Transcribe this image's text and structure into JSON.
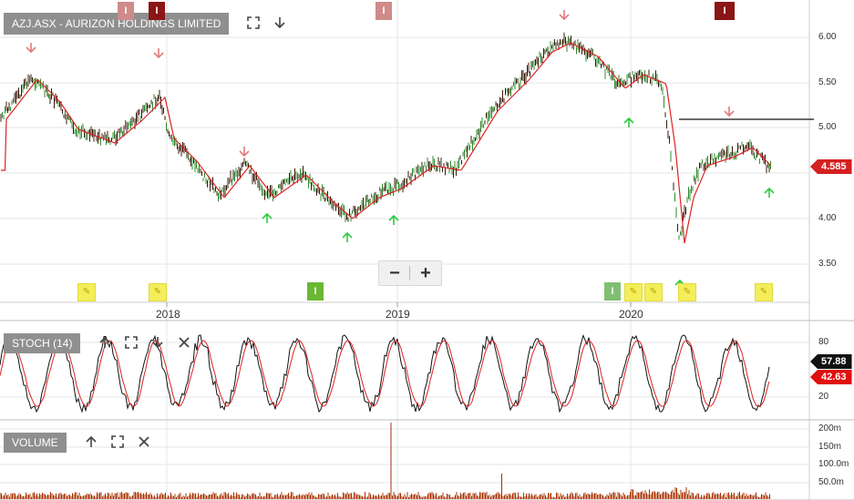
{
  "main_panel": {
    "title": "AZJ.ASX - AURIZON HOLDINGS LIMITED",
    "y_ticks": [
      "6.00",
      "5.50",
      "5.00",
      "4.50",
      "4.00",
      "3.50"
    ],
    "last_price": "4.585",
    "last_price_color": "#d42020"
  },
  "x_axis": {
    "years": [
      "2018",
      "2019",
      "2020"
    ]
  },
  "stoch_panel": {
    "title": "STOCH (14)",
    "y_ticks": [
      "80",
      "20"
    ],
    "k_value": "57.88",
    "d_value": "42.63"
  },
  "volume_panel": {
    "title": "VOLUME",
    "y_ticks": [
      "200m",
      "150m",
      "100.0m",
      "50.0m"
    ]
  },
  "badges": {
    "info_letter": "I"
  },
  "zoom": {
    "minus": "−",
    "plus": "+"
  },
  "icons": {
    "fullscreen": "fullscreen-icon",
    "down": "arrow-down-icon",
    "up": "arrow-up-icon",
    "close": "close-icon",
    "pencil": "pencil-icon"
  },
  "colors": {
    "price_line": "#dd2222",
    "up_candle": "#2e8b2e",
    "down_candle": "#3a1a0a",
    "volume": "#a83000",
    "signal_up": "#2ecc40",
    "signal_down": "#e07a7a"
  }
}
